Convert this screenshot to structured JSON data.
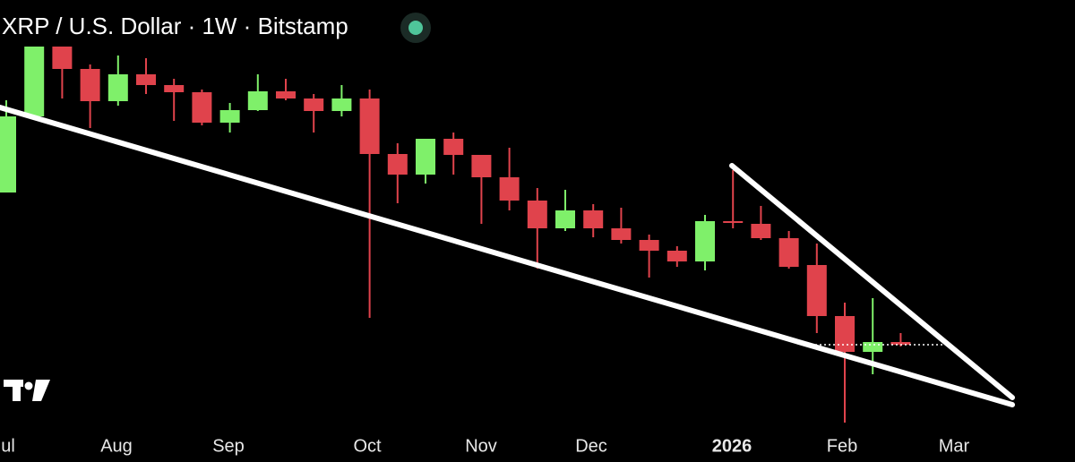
{
  "chart_data": {
    "type": "candlestick",
    "title": "XRP / U.S. Dollar · 1W · Bitstamp",
    "x_labels": [
      "Jul",
      "Aug",
      "Sep",
      "Oct",
      "Nov",
      "Dec",
      "2026",
      "Feb",
      "Mar"
    ],
    "open": [
      2.725,
      3.15,
      3.54,
      3.415,
      3.235,
      3.385,
      3.325,
      3.285,
      3.115,
      3.185,
      3.29,
      3.25,
      3.18,
      3.25,
      2.94,
      2.825,
      3.025,
      2.935,
      2.81,
      2.68,
      2.525,
      2.625,
      2.525,
      2.46,
      2.4,
      2.34,
      2.565,
      2.55,
      2.47,
      2.32,
      2.035,
      1.835,
      1.89
    ],
    "high": [
      3.24,
      3.65,
      3.575,
      3.44,
      3.49,
      3.475,
      3.36,
      3.3,
      3.225,
      3.385,
      3.36,
      3.275,
      3.325,
      3.3,
      3.0,
      3.025,
      3.06,
      2.935,
      2.975,
      2.75,
      2.74,
      2.66,
      2.64,
      2.49,
      2.425,
      2.6,
      2.85,
      2.65,
      2.51,
      2.44,
      2.11,
      2.135,
      1.94
    ],
    "low": [
      2.725,
      3.15,
      3.25,
      3.085,
      3.21,
      3.275,
      3.125,
      3.1,
      3.06,
      3.18,
      3.24,
      3.06,
      3.15,
      2.025,
      2.665,
      2.775,
      2.825,
      2.55,
      2.625,
      2.3,
      2.51,
      2.475,
      2.44,
      2.25,
      2.31,
      2.29,
      2.525,
      2.46,
      2.3,
      1.94,
      1.44,
      1.71,
      1.865
    ],
    "close": [
      3.15,
      3.54,
      3.415,
      3.235,
      3.385,
      3.325,
      3.285,
      3.115,
      3.185,
      3.29,
      3.25,
      3.18,
      3.25,
      2.94,
      2.825,
      3.025,
      2.935,
      2.81,
      2.68,
      2.525,
      2.625,
      2.525,
      2.46,
      2.4,
      2.34,
      2.565,
      2.555,
      2.47,
      2.31,
      2.035,
      1.835,
      1.89,
      1.875
    ],
    "ylim": [
      1.4,
      3.8
    ],
    "up_color": "#7ff06a",
    "down_color": "#e0434c"
  }
}
